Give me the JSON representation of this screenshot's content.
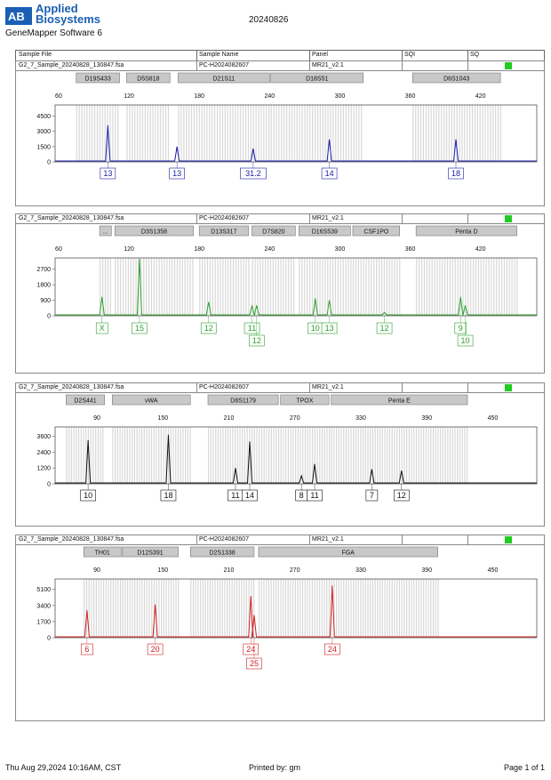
{
  "header": {
    "brand_line1": "Applied",
    "brand_line2": "Biosystems",
    "software": "GeneMapper Software 6",
    "date": "20240826"
  },
  "columns": [
    "Sample File",
    "Sample Name",
    "Panel",
    "SQI",
    "SQ"
  ],
  "panels": [
    {
      "sample_file": "G2_7_Sample_20240828_130847.fsa",
      "sample_name": "PC-H2024082607",
      "panel": "MR21_v2.1",
      "color": "#1a1aa8",
      "ticks": [
        60,
        120,
        180,
        240,
        300,
        360,
        420
      ],
      "x_range": [
        57,
        468
      ],
      "y_ticks": [
        0,
        1500,
        3000,
        4500
      ],
      "y_max": 5600,
      "loci": [
        {
          "name": "D19S433",
          "from": 75,
          "to": 112
        },
        {
          "name": "D5S818",
          "from": 118,
          "to": 155
        },
        {
          "name": "D21S11",
          "from": 162,
          "to": 240
        },
        {
          "name": "D18S51",
          "from": 241,
          "to": 320
        },
        {
          "name": "D6S1043",
          "from": 362,
          "to": 437
        }
      ],
      "peaks": [
        {
          "x": 102,
          "h": 3600,
          "label": "13"
        },
        {
          "x": 161,
          "h": 1500,
          "label": "13"
        },
        {
          "x": 226,
          "h": 1300,
          "label": "31.2"
        },
        {
          "x": 291,
          "h": 2200,
          "label": "14"
        },
        {
          "x": 399,
          "h": 2200,
          "label": "18"
        }
      ]
    },
    {
      "sample_file": "G2_7_Sample_20240828_130847.fsa",
      "sample_name": "PC-H2024082607",
      "panel": "MR21_v2.1",
      "color": "#2ca02c",
      "ticks": [
        60,
        120,
        180,
        240,
        300,
        360,
        420
      ],
      "x_range": [
        57,
        468
      ],
      "y_ticks": [
        0,
        900,
        1800,
        2700
      ],
      "y_max": 3350,
      "loci": [
        {
          "name": "...",
          "from": 95,
          "to": 105
        },
        {
          "name": "D3S1358",
          "from": 108,
          "to": 175
        },
        {
          "name": "D13S317",
          "from": 180,
          "to": 222
        },
        {
          "name": "D7S820",
          "from": 225,
          "to": 262
        },
        {
          "name": "D16S539",
          "from": 265,
          "to": 309
        },
        {
          "name": "CSF1PO",
          "from": 311,
          "to": 351
        },
        {
          "name": "Penta D",
          "from": 365,
          "to": 451
        }
      ],
      "peaks": [
        {
          "x": 97,
          "h": 1100,
          "label": "X",
          "row": 0
        },
        {
          "x": 129,
          "h": 3300,
          "label": "15",
          "row": 0
        },
        {
          "x": 188,
          "h": 800,
          "label": "12",
          "row": 0
        },
        {
          "x": 225,
          "h": 600,
          "label": "11",
          "row": 0
        },
        {
          "x": 229,
          "h": 600,
          "label": "12",
          "row": 1
        },
        {
          "x": 279,
          "h": 1000,
          "label": "10",
          "row": 0
        },
        {
          "x": 291,
          "h": 900,
          "label": "13",
          "row": 0
        },
        {
          "x": 338,
          "h": 200,
          "label": "12",
          "row": 0
        },
        {
          "x": 403,
          "h": 1100,
          "label": "9",
          "row": 0
        },
        {
          "x": 407,
          "h": 600,
          "label": "10",
          "row": 1
        }
      ]
    },
    {
      "sample_file": "G2_7_Sample_20240828_130847.fsa",
      "sample_name": "PC-H2024082607",
      "panel": "MR21_v2.1",
      "color": "#111111",
      "ticks": [
        90,
        150,
        210,
        270,
        330,
        390,
        450
      ],
      "x_range": [
        52,
        490
      ],
      "y_ticks": [
        0,
        1200,
        2400,
        3600
      ],
      "y_max": 4300,
      "loci": [
        {
          "name": "D2S441",
          "from": 62,
          "to": 97
        },
        {
          "name": "vWA",
          "from": 104,
          "to": 175
        },
        {
          "name": "D8S1179",
          "from": 191,
          "to": 255
        },
        {
          "name": "TPOX",
          "from": 257,
          "to": 301
        },
        {
          "name": "Penta E",
          "from": 303,
          "to": 427
        }
      ],
      "peaks": [
        {
          "x": 82,
          "h": 3300,
          "label": "10"
        },
        {
          "x": 155,
          "h": 3700,
          "label": "18"
        },
        {
          "x": 216,
          "h": 1200,
          "label": "11"
        },
        {
          "x": 229,
          "h": 3200,
          "label": "14"
        },
        {
          "x": 276,
          "h": 600,
          "label": "8"
        },
        {
          "x": 288,
          "h": 1500,
          "label": "11"
        },
        {
          "x": 340,
          "h": 1100,
          "label": "7"
        },
        {
          "x": 367,
          "h": 1000,
          "label": "12"
        }
      ]
    },
    {
      "sample_file": "G2_7_Sample_20240828_130847.fsa",
      "sample_name": "PC-H2024082607",
      "panel": "MR21_v2.1",
      "color": "#d02020",
      "ticks": [
        90,
        150,
        210,
        270,
        330,
        390,
        450
      ],
      "x_range": [
        52,
        490
      ],
      "y_ticks": [
        0,
        1700,
        3400,
        5100
      ],
      "y_max": 6200,
      "loci": [
        {
          "name": "TH01",
          "from": 78,
          "to": 112
        },
        {
          "name": "D12S391",
          "from": 113,
          "to": 164
        },
        {
          "name": "D2S1338",
          "from": 175,
          "to": 233
        },
        {
          "name": "FGA",
          "from": 237,
          "to": 400
        }
      ],
      "peaks": [
        {
          "x": 81,
          "h": 2900,
          "label": "6",
          "row": 0
        },
        {
          "x": 143,
          "h": 3500,
          "label": "20",
          "row": 0
        },
        {
          "x": 230,
          "h": 4400,
          "label": "24",
          "row": 0
        },
        {
          "x": 233,
          "h": 2400,
          "label": "25",
          "row": 1
        },
        {
          "x": 304,
          "h": 5500,
          "label": "24",
          "row": 0
        }
      ]
    }
  ],
  "footer": {
    "datetime": "Thu Aug 29,2024 10:16AM, CST",
    "printed_by": "Printed by: gm",
    "page": "Page 1 of 1"
  }
}
